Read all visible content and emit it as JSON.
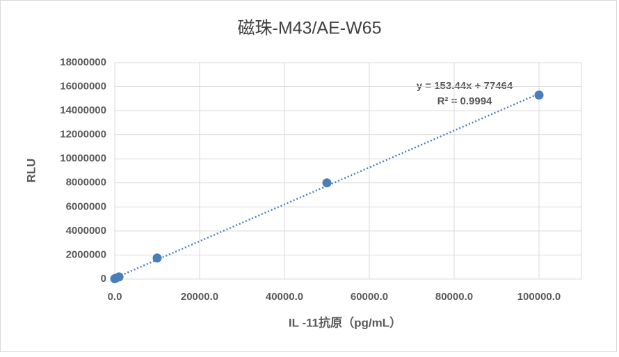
{
  "chart_data": {
    "type": "scatter",
    "title": "磁珠-M43/AE-W65",
    "x_label": "IL -11抗原（pg/mL）",
    "y_label": "RLU",
    "series": [
      {
        "color": "#4a7ebb",
        "x": [
          0,
          100,
          1000,
          10000,
          50000,
          100000
        ],
        "values": [
          30000,
          50000,
          180000,
          1750000,
          8000000,
          15300000
        ]
      }
    ],
    "trendline": {
      "slope": 153.44,
      "intercept": 77464,
      "color": "#4a7ebb",
      "equation": "y = 153.44x + 77464",
      "r2": "R² = 0.9994"
    },
    "xlim": [
      0,
      110000
    ],
    "xticks": [
      {
        "value": 0,
        "label": "0.0"
      },
      {
        "value": 20000,
        "label": "20000.0"
      },
      {
        "value": 40000,
        "label": "40000.0"
      },
      {
        "value": 60000,
        "label": "60000.0"
      },
      {
        "value": 80000,
        "label": "80000.0"
      },
      {
        "value": 100000,
        "label": "100000.0"
      }
    ],
    "ylim": [
      0,
      18000000
    ],
    "yticks": [
      0,
      2000000,
      4000000,
      6000000,
      8000000,
      10000000,
      12000000,
      14000000,
      16000000,
      18000000
    ],
    "grid": true
  }
}
